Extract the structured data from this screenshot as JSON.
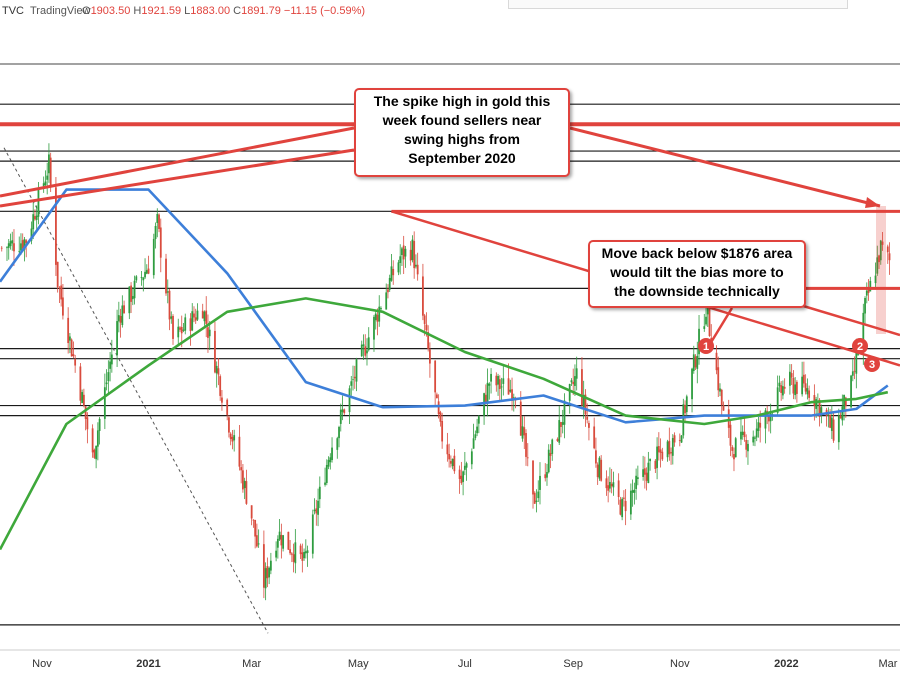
{
  "header": {
    "symbol": "TVC",
    "brand": "TradingView",
    "ohlc": [
      {
        "key": "O",
        "value": "1903.50"
      },
      {
        "key": "H",
        "value": "1921.59"
      },
      {
        "key": "L",
        "value": "1883.00"
      },
      {
        "key": "C",
        "value": "1891.79"
      }
    ],
    "change": "−11.15 (−0.59%)"
  },
  "annotations": {
    "callout_1": [
      "The spike high in gold this",
      "week found sellers near",
      "swing highs from",
      "September 2020"
    ],
    "callout_2": [
      "Move back below $1876 area",
      "would tilt the bias more to",
      "the downside technically"
    ],
    "markers": [
      "1",
      "2",
      "3"
    ]
  },
  "colors": {
    "up_candle": "#2e9c3f",
    "down_candle": "#d94b3d",
    "ma_100": "#3d7fd9",
    "ma_200": "#3ea83b",
    "annotation_red": "#e0433d",
    "level_line": "#1a1a1a"
  },
  "chart_data": {
    "type": "candlestick",
    "instrument": "TVC",
    "x_tick_labels": [
      "Nov",
      "2021",
      "Mar",
      "May",
      "Jul",
      "Sep",
      "Nov",
      "2022",
      "Mar"
    ],
    "x_ticks": [
      "2020-11",
      "2021-01",
      "2021-03",
      "2021-05",
      "2021-07",
      "2021-09",
      "2021-11",
      "2022-01",
      "2022-03"
    ],
    "xlim": [
      "2020-10-08",
      "2022-03-07"
    ],
    "ylim": [
      1660,
      2010
    ],
    "last_bar": {
      "open": 1903.5,
      "high": 1921.59,
      "low": 1883.0,
      "close": 1891.79,
      "change": -11.15,
      "change_pct": -0.59
    },
    "horizontal_levels": [
      1986,
      1958,
      1952,
      1922,
      1876,
      1840,
      1834,
      1806,
      1800,
      1675
    ],
    "red_levels": [
      1974,
      1922,
      1876
    ],
    "trendlines": [
      {
        "from": [
          "2021-05-20",
          1922
        ],
        "to": [
          "2022-03-07",
          1830
        ]
      },
      {
        "from": [
          "2021-11-16",
          1876
        ],
        "to": [
          "2022-03-07",
          1876
        ]
      }
    ],
    "series": [
      {
        "name": "",
        "color": "#3d7fd9",
        "x": [
          "2020-10-08",
          "2020-11-15",
          "2021-01-01",
          "2021-02-15",
          "2021-04-01",
          "2021-05-15",
          "2021-07-01",
          "2021-08-15",
          "2021-10-01",
          "2021-11-15",
          "2021-12-15",
          "2022-01-15",
          "2022-02-10",
          "2022-02-28"
        ],
        "y": [
          1880,
          1935,
          1935,
          1885,
          1820,
          1805,
          1806,
          1812,
          1796,
          1800,
          1800,
          1800,
          1804,
          1818
        ]
      },
      {
        "name": "",
        "color": "#3ea83b",
        "x": [
          "2020-10-08",
          "2020-11-15",
          "2021-01-01",
          "2021-02-15",
          "2021-04-01",
          "2021-05-15",
          "2021-07-01",
          "2021-08-15",
          "2021-10-01",
          "2021-11-15",
          "2021-12-15",
          "2022-01-15",
          "2022-02-10",
          "2022-02-28"
        ],
        "y": [
          1720,
          1795,
          1830,
          1862,
          1870,
          1862,
          1838,
          1822,
          1800,
          1795,
          1800,
          1808,
          1810,
          1814
        ]
      },
      {
        "name": "",
        "type": "candlestick",
        "x": [
          "2020-10-08",
          "2020-10-23",
          "2020-11-05",
          "2020-11-10",
          "2020-11-24",
          "2020-11-30",
          "2020-12-15",
          "2021-01-01",
          "2021-01-06",
          "2021-01-15",
          "2021-02-01",
          "2021-02-15",
          "2021-03-01",
          "2021-03-08",
          "2021-03-16",
          "2021-03-31",
          "2021-04-15",
          "2021-05-01",
          "2021-05-15",
          "2021-05-25",
          "2021-06-01",
          "2021-06-17",
          "2021-06-29",
          "2021-07-15",
          "2021-07-30",
          "2021-08-09",
          "2021-08-20",
          "2021-09-03",
          "2021-09-15",
          "2021-09-29",
          "2021-10-15",
          "2021-11-01",
          "2021-11-16",
          "2021-11-26",
          "2021-12-01",
          "2021-12-15",
          "2022-01-01",
          "2022-01-15",
          "2022-01-28",
          "2022-02-08",
          "2022-02-15",
          "2022-02-24",
          "2022-03-01"
        ],
        "close": [
          1900,
          1905,
          1950,
          1880,
          1810,
          1775,
          1860,
          1890,
          1915,
          1845,
          1865,
          1800,
          1740,
          1700,
          1730,
          1712,
          1780,
          1830,
          1870,
          1895,
          1900,
          1790,
          1760,
          1820,
          1815,
          1748,
          1780,
          1825,
          1770,
          1745,
          1770,
          1790,
          1865,
          1800,
          1780,
          1790,
          1820,
          1815,
          1790,
          1820,
          1865,
          1900,
          1892
        ]
      }
    ]
  }
}
